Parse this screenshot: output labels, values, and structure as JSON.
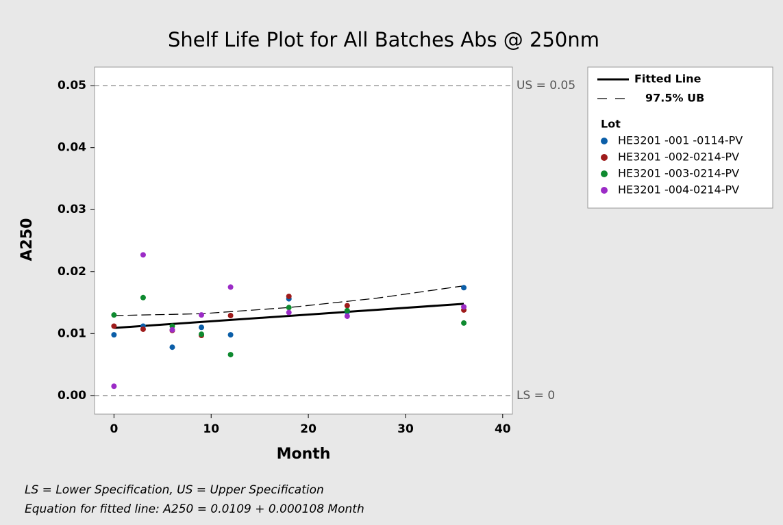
{
  "chart_data": {
    "type": "scatter",
    "title": "Shelf Life Plot for All Batches Abs @ 250nm",
    "xlabel": "Month",
    "ylabel": "A250",
    "xlim": [
      -2,
      41
    ],
    "ylim": [
      -0.003,
      0.053
    ],
    "xticks": [
      0,
      10,
      20,
      30,
      40
    ],
    "yticks": [
      {
        "value": 0,
        "label": "0.00"
      },
      0.01,
      0.02,
      0.03,
      0.04,
      0.05
    ],
    "x": [
      0,
      3,
      6,
      9,
      12,
      18,
      24,
      36
    ],
    "legend_title": "Lot",
    "series": [
      {
        "name": "HE3201 -001 -0114-PV",
        "color": "#0b5ea8",
        "values": [
          0.0098,
          0.0112,
          0.0078,
          0.011,
          0.0098,
          0.0156,
          0.0135,
          0.0174
        ]
      },
      {
        "name": "HE3201 -002-0214-PV",
        "color": "#9e1b1b",
        "values": [
          0.0112,
          0.0107,
          0.0105,
          0.0097,
          0.0129,
          0.016,
          0.0145,
          0.0138
        ]
      },
      {
        "name": "HE3201 -003-0214-PV",
        "color": "#0e8a2f",
        "values": [
          0.013,
          0.0158,
          0.0112,
          0.0099,
          0.0066,
          0.0142,
          0.0137,
          0.0117
        ]
      },
      {
        "name": "HE3201 -004-0214-PV",
        "color": "#9b2bc6",
        "values": [
          0.0015,
          0.0227,
          0.0106,
          0.013,
          0.0175,
          0.0134,
          0.0128,
          0.0143
        ]
      }
    ],
    "lines": [
      {
        "name": "Fitted Line",
        "dash": false,
        "x": [
          0,
          36
        ],
        "values": [
          0.0109,
          0.0148
        ]
      },
      {
        "name": "97.5% UB",
        "dash": true,
        "x": [
          0,
          9,
          18,
          27,
          36
        ],
        "values": [
          0.0129,
          0.0132,
          0.0142,
          0.0157,
          0.0177
        ]
      }
    ],
    "spec_lines": [
      {
        "label": "US = 0.05",
        "value": 0.05
      },
      {
        "label": "LS = 0",
        "value": 0
      }
    ],
    "footnotes": [
      "LS = Lower Specification, US = Upper Specification",
      "Equation for fitted line: A250 = 0.0109 + 0.000108 Month"
    ]
  }
}
